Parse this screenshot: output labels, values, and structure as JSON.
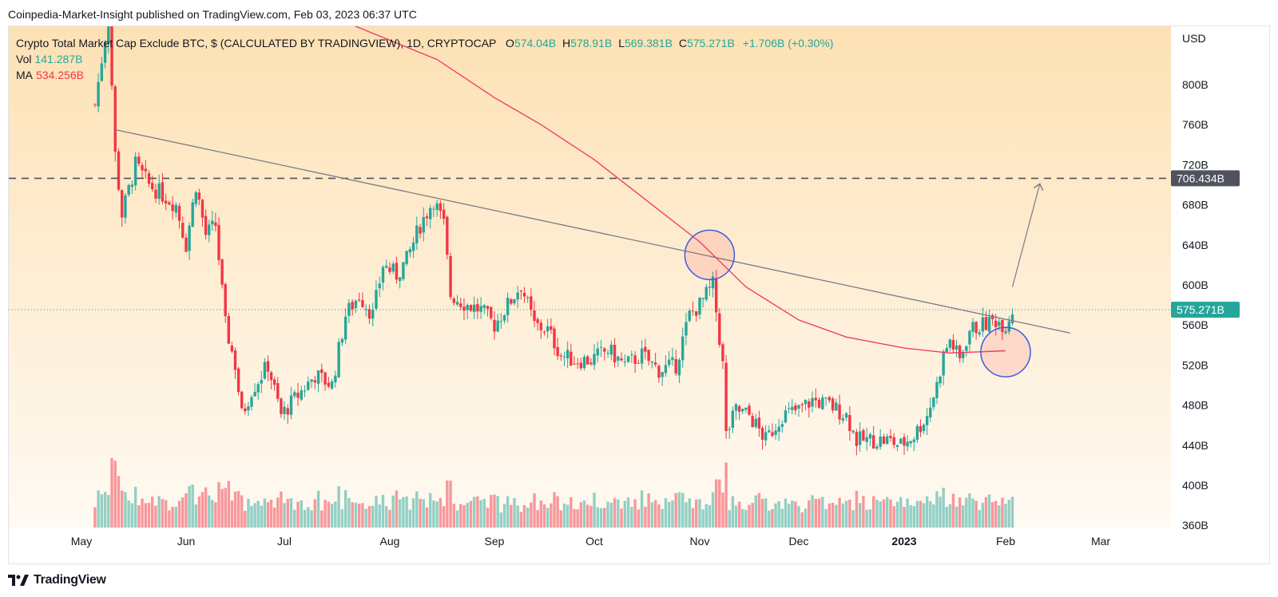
{
  "header": {
    "published": "Coinpedia-Market-Insight published on TradingView.com, Feb 03, 2023 06:37 UTC"
  },
  "legend": {
    "title": "Crypto Total Market Cap Exclude BTC, $ (CALCULATED BY TRADINGVIEW), 1D, CRYPTOCAP",
    "o_label": "O",
    "o_value": "574.04B",
    "h_label": "H",
    "h_value": "578.91B",
    "l_label": "L",
    "l_value": "569.381B",
    "c_label": "C",
    "c_value": "575.271B",
    "change": "+1.706B (+0.30%)",
    "vol_label": "Vol",
    "vol_value": "141.287B",
    "ma_label": "MA",
    "ma_value": "534.256B"
  },
  "currency": "USD",
  "footer": {
    "brand": "TradingView",
    "logo_icon": "tradingview-logo-icon"
  },
  "colors": {
    "up": "#26a69a",
    "down": "#f23645",
    "ma": "#f23b6e",
    "trend": "#787b86",
    "resistance": "#50535e",
    "circle": "#3c5be0"
  },
  "chart_data": {
    "type": "candlestick",
    "title": "Crypto Total Market Cap Exclude BTC, $ (CALCULATED BY TRADINGVIEW), 1D, CRYPTOCAP",
    "interval": "1D",
    "ylabel": "USD",
    "ylim": [
      360,
      860
    ],
    "y_ticks": [
      "360B",
      "400B",
      "440B",
      "480B",
      "520B",
      "560B",
      "600B",
      "640B",
      "680B",
      "720B",
      "760B",
      "800B"
    ],
    "x_ticks": [
      "May",
      "Jun",
      "Jul",
      "Aug",
      "Sep",
      "Oct",
      "Nov",
      "Dec",
      "2023",
      "Feb",
      "Mar"
    ],
    "x_tick_dates": [
      "2022-05-01",
      "2022-06-01",
      "2022-07-01",
      "2022-08-01",
      "2022-09-01",
      "2022-10-01",
      "2022-11-01",
      "2022-12-01",
      "2023-01-01",
      "2023-02-01",
      "2023-03-01"
    ],
    "last_price": 575.271,
    "last_price_label": "575.271B",
    "resistance_level": 706.434,
    "resistance_label": "706.434B",
    "trendline": {
      "from": {
        "date": "2022-05-11",
        "value": 755
      },
      "to": {
        "date": "2023-02-20",
        "value": 552
      }
    },
    "projection_arrow": {
      "from": {
        "date": "2023-02-03",
        "value": 598
      },
      "to": {
        "date": "2023-02-11",
        "value": 700
      }
    },
    "circles": [
      {
        "date": "2022-11-04",
        "value": 630
      },
      {
        "date": "2023-02-01",
        "value": 533
      }
    ],
    "ma_series": [
      {
        "date": "2022-07-22",
        "value": 860
      },
      {
        "date": "2022-08-15",
        "value": 825
      },
      {
        "date": "2022-09-01",
        "value": 787
      },
      {
        "date": "2022-09-15",
        "value": 760
      },
      {
        "date": "2022-10-01",
        "value": 725
      },
      {
        "date": "2022-10-15",
        "value": 688
      },
      {
        "date": "2022-11-01",
        "value": 643
      },
      {
        "date": "2022-11-15",
        "value": 598
      },
      {
        "date": "2022-12-01",
        "value": 565
      },
      {
        "date": "2022-12-15",
        "value": 548
      },
      {
        "date": "2023-01-01",
        "value": 537
      },
      {
        "date": "2023-01-15",
        "value": 532
      },
      {
        "date": "2023-02-01",
        "value": 534.256
      }
    ],
    "price_series": [
      {
        "date": "2022-05-05",
        "value": 780
      },
      {
        "date": "2022-05-09",
        "value": 870
      },
      {
        "date": "2022-05-11",
        "value": 730
      },
      {
        "date": "2022-05-13",
        "value": 670
      },
      {
        "date": "2022-05-17",
        "value": 720
      },
      {
        "date": "2022-05-21",
        "value": 700
      },
      {
        "date": "2022-05-25",
        "value": 690
      },
      {
        "date": "2022-05-29",
        "value": 680
      },
      {
        "date": "2022-06-01",
        "value": 640
      },
      {
        "date": "2022-06-04",
        "value": 700
      },
      {
        "date": "2022-06-07",
        "value": 650
      },
      {
        "date": "2022-06-10",
        "value": 660
      },
      {
        "date": "2022-06-13",
        "value": 560
      },
      {
        "date": "2022-06-16",
        "value": 520
      },
      {
        "date": "2022-06-18",
        "value": 470
      },
      {
        "date": "2022-06-21",
        "value": 495
      },
      {
        "date": "2022-06-26",
        "value": 520
      },
      {
        "date": "2022-06-30",
        "value": 470
      },
      {
        "date": "2022-07-05",
        "value": 490
      },
      {
        "date": "2022-07-10",
        "value": 510
      },
      {
        "date": "2022-07-15",
        "value": 500
      },
      {
        "date": "2022-07-19",
        "value": 570
      },
      {
        "date": "2022-07-23",
        "value": 590
      },
      {
        "date": "2022-07-27",
        "value": 570
      },
      {
        "date": "2022-07-30",
        "value": 620
      },
      {
        "date": "2022-08-03",
        "value": 610
      },
      {
        "date": "2022-08-06",
        "value": 625
      },
      {
        "date": "2022-08-10",
        "value": 660
      },
      {
        "date": "2022-08-14",
        "value": 685
      },
      {
        "date": "2022-08-17",
        "value": 660
      },
      {
        "date": "2022-08-19",
        "value": 590
      },
      {
        "date": "2022-08-24",
        "value": 580
      },
      {
        "date": "2022-08-28",
        "value": 575
      },
      {
        "date": "2022-09-01",
        "value": 560
      },
      {
        "date": "2022-09-05",
        "value": 580
      },
      {
        "date": "2022-09-09",
        "value": 600
      },
      {
        "date": "2022-09-13",
        "value": 560
      },
      {
        "date": "2022-09-17",
        "value": 555
      },
      {
        "date": "2022-09-21",
        "value": 530
      },
      {
        "date": "2022-09-25",
        "value": 525
      },
      {
        "date": "2022-09-30",
        "value": 525
      },
      {
        "date": "2022-10-05",
        "value": 535
      },
      {
        "date": "2022-10-10",
        "value": 520
      },
      {
        "date": "2022-10-15",
        "value": 530
      },
      {
        "date": "2022-10-20",
        "value": 515
      },
      {
        "date": "2022-10-25",
        "value": 520
      },
      {
        "date": "2022-10-29",
        "value": 570
      },
      {
        "date": "2022-11-01",
        "value": 580
      },
      {
        "date": "2022-11-05",
        "value": 600
      },
      {
        "date": "2022-11-08",
        "value": 520
      },
      {
        "date": "2022-11-09",
        "value": 450
      },
      {
        "date": "2022-11-12",
        "value": 475
      },
      {
        "date": "2022-11-16",
        "value": 470
      },
      {
        "date": "2022-11-21",
        "value": 445
      },
      {
        "date": "2022-11-26",
        "value": 470
      },
      {
        "date": "2022-12-01",
        "value": 475
      },
      {
        "date": "2022-12-05",
        "value": 485
      },
      {
        "date": "2022-12-10",
        "value": 480
      },
      {
        "date": "2022-12-15",
        "value": 470
      },
      {
        "date": "2022-12-18",
        "value": 445
      },
      {
        "date": "2022-12-22",
        "value": 445
      },
      {
        "date": "2022-12-27",
        "value": 445
      },
      {
        "date": "2022-12-31",
        "value": 440
      },
      {
        "date": "2023-01-04",
        "value": 450
      },
      {
        "date": "2023-01-08",
        "value": 470
      },
      {
        "date": "2023-01-11",
        "value": 500
      },
      {
        "date": "2023-01-13",
        "value": 530
      },
      {
        "date": "2023-01-15",
        "value": 545
      },
      {
        "date": "2023-01-18",
        "value": 525
      },
      {
        "date": "2023-01-21",
        "value": 555
      },
      {
        "date": "2023-01-25",
        "value": 560
      },
      {
        "date": "2023-01-29",
        "value": 565
      },
      {
        "date": "2023-02-01",
        "value": 560
      },
      {
        "date": "2023-02-03",
        "value": 575.271
      }
    ]
  }
}
